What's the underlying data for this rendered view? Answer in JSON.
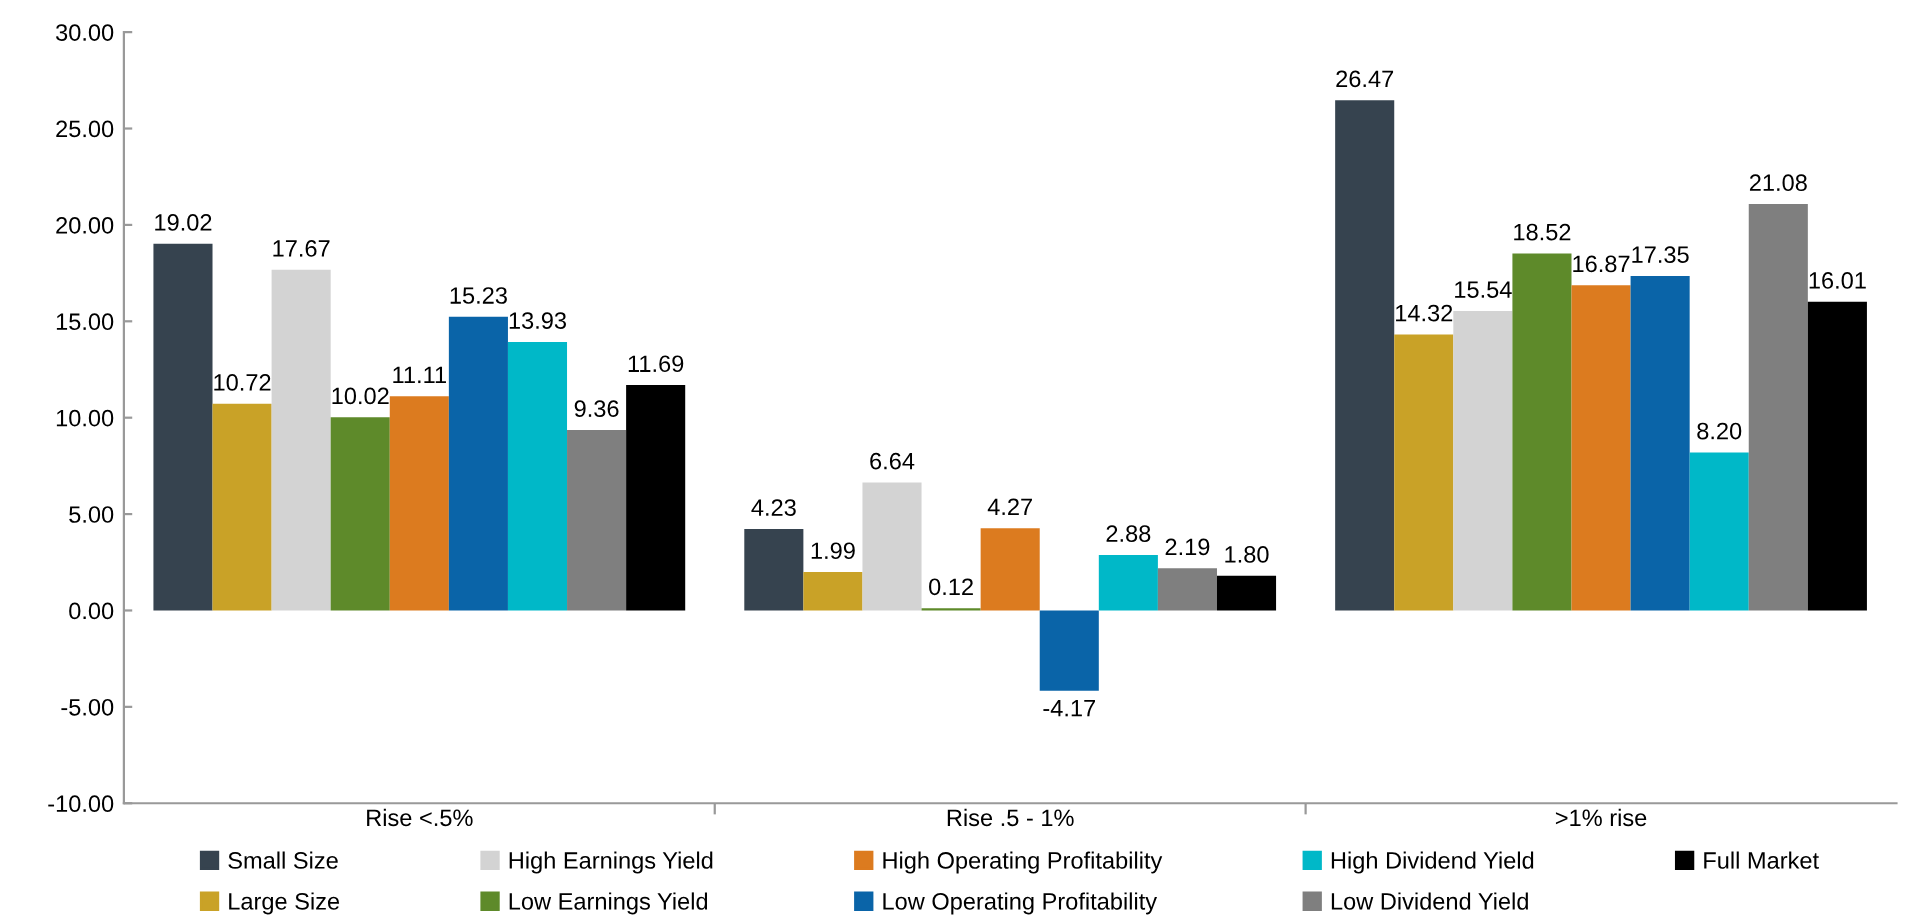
{
  "chart_data": {
    "type": "bar",
    "categories": [
      "Rise <.5%",
      "Rise .5 - 1%",
      ">1% rise"
    ],
    "series": [
      {
        "name": "Small Size",
        "color": "#36434f",
        "values": [
          19.02,
          4.23,
          26.47
        ],
        "value_labels": [
          "19.02",
          "4.23",
          "26.47"
        ]
      },
      {
        "name": "Large Size",
        "color": "#c9a227",
        "values": [
          10.72,
          1.99,
          14.32
        ],
        "value_labels": [
          "10.72",
          "1.99",
          "14.32"
        ]
      },
      {
        "name": "High Earnings Yield",
        "color": "#d3d3d3",
        "values": [
          17.67,
          6.64,
          15.54
        ],
        "value_labels": [
          "17.67",
          "6.64",
          "15.54"
        ]
      },
      {
        "name": "Low Earnings Yield",
        "color": "#5e8a2a",
        "values": [
          10.02,
          0.12,
          18.52
        ],
        "value_labels": [
          "10.02",
          "0.12",
          "18.52"
        ]
      },
      {
        "name": "High Operating Profitability",
        "color": "#dc7b1f",
        "values": [
          11.11,
          4.27,
          16.87
        ],
        "value_labels": [
          "11.11",
          "4.27",
          "16.87"
        ]
      },
      {
        "name": "Low Operating Profitability",
        "color": "#0a64a8",
        "values": [
          15.23,
          -4.17,
          17.35
        ],
        "value_labels": [
          "15.23",
          "-4.17",
          "17.35"
        ]
      },
      {
        "name": "High Dividend Yield",
        "color": "#00b8c8",
        "values": [
          13.93,
          2.88,
          8.2
        ],
        "value_labels": [
          "13.93",
          "2.88",
          "8.20"
        ]
      },
      {
        "name": "Low Dividend Yield",
        "color": "#7f7f7f",
        "values": [
          9.36,
          2.19,
          21.08
        ],
        "value_labels": [
          "9.36",
          "2.19",
          "21.08"
        ]
      },
      {
        "name": "Full Market",
        "color": "#000000",
        "values": [
          11.69,
          1.8,
          16.01
        ],
        "value_labels": [
          "11.69",
          "1.80",
          "16.01"
        ]
      }
    ],
    "ylim": [
      -10,
      30
    ],
    "yticks": [
      {
        "value": -10,
        "label": "-10.00"
      },
      {
        "value": -5,
        "label": "-5.00"
      },
      {
        "value": 0,
        "label": "0.00"
      },
      {
        "value": 5,
        "label": "5.00"
      },
      {
        "value": 10,
        "label": "10.00"
      },
      {
        "value": 15,
        "label": "15.00"
      },
      {
        "value": 20,
        "label": "20.00"
      },
      {
        "value": 25,
        "label": "25.00"
      },
      {
        "value": 30,
        "label": "30.00"
      }
    ],
    "grid": false,
    "legend": "bottom"
  }
}
